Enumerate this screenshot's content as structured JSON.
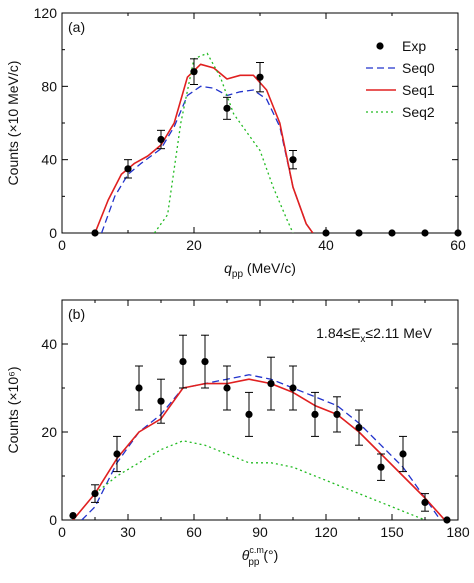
{
  "colors": {
    "exp": "#000000",
    "seq0": "#2233cc",
    "seq1": "#e02020",
    "seq2": "#22bb22",
    "axis": "#000000"
  },
  "chart_data": [
    {
      "type": "line",
      "panel_label": "(a)",
      "ylabel": "Counts (×10 MeV/c)",
      "xlabel_main": "q",
      "xlabel_sub": "pp",
      "xlabel_unit": " (MeV/c)",
      "xlim": [
        0,
        60
      ],
      "ylim": [
        0,
        120
      ],
      "xticks": [
        0,
        20,
        40,
        60
      ],
      "yticks": [
        0,
        40,
        80,
        120
      ],
      "xminor": [
        10,
        30,
        50
      ],
      "yminor": [
        20,
        60,
        100
      ],
      "legend_position": "top-right",
      "grid": false,
      "annotation": "",
      "points": {
        "name": "Exp",
        "x": [
          5,
          10,
          15,
          20,
          25,
          30,
          35,
          40,
          45,
          50,
          55,
          60
        ],
        "y": [
          0,
          35,
          51,
          88,
          68,
          85,
          40,
          0,
          0,
          0,
          0,
          0
        ],
        "err": [
          0,
          5,
          5,
          7,
          6,
          8,
          5,
          0,
          0,
          0,
          0,
          0
        ]
      },
      "series": [
        {
          "name": "Seq0",
          "style": "dashed",
          "color_key": "seq0",
          "x": [
            6,
            8,
            10,
            12,
            15,
            17,
            19,
            21,
            23,
            25,
            27,
            29,
            31,
            33,
            35,
            37,
            38
          ],
          "y": [
            0,
            20,
            32,
            38,
            46,
            58,
            75,
            80,
            79,
            75,
            77,
            78,
            73,
            58,
            25,
            5,
            0
          ]
        },
        {
          "name": "Seq1",
          "style": "solid",
          "color_key": "seq1",
          "x": [
            5,
            7,
            9,
            11,
            13,
            15,
            17,
            19,
            21,
            23,
            25,
            27,
            29,
            31,
            33,
            35,
            37,
            38
          ],
          "y": [
            0,
            18,
            32,
            38,
            42,
            48,
            60,
            85,
            92,
            90,
            84,
            86,
            86,
            78,
            60,
            25,
            5,
            0
          ]
        },
        {
          "name": "Seq2",
          "style": "dotted",
          "color_key": "seq2",
          "x": [
            14,
            16,
            18,
            20,
            22,
            24,
            26,
            28,
            30,
            32,
            34,
            35
          ],
          "y": [
            0,
            10,
            60,
            95,
            98,
            85,
            65,
            55,
            45,
            25,
            8,
            0
          ]
        }
      ]
    },
    {
      "type": "line",
      "panel_label": "(b)",
      "ylabel": "Counts (×10⁶)",
      "xlabel_main": "θ",
      "xlabel_sub": "pp",
      "xlabel_sup": "c.m.",
      "xlabel_unit": " (°)",
      "xlim": [
        0,
        180
      ],
      "ylim": [
        0,
        50
      ],
      "xticks": [
        0,
        30,
        60,
        90,
        120,
        150,
        180
      ],
      "yticks": [
        0,
        20,
        40
      ],
      "xminor": [
        15,
        45,
        75,
        105,
        135,
        165
      ],
      "yminor": [
        10,
        30
      ],
      "grid": false,
      "annotation": "1.84≤E",
      "annotation_sub": "x",
      "annotation_tail": "≤2.11 MeV",
      "points": {
        "name": "Exp",
        "x": [
          5,
          15,
          25,
          35,
          45,
          55,
          65,
          75,
          85,
          95,
          105,
          115,
          125,
          135,
          145,
          155,
          165,
          175
        ],
        "y": [
          1,
          6,
          15,
          30,
          27,
          36,
          36,
          30,
          24,
          31,
          30,
          24,
          24,
          21,
          12,
          15,
          4,
          0
        ],
        "err": [
          0,
          2,
          4,
          5,
          5,
          6,
          6,
          5,
          5,
          6,
          5,
          5,
          4,
          4,
          3,
          4,
          2,
          0
        ]
      },
      "series": [
        {
          "name": "Seq0",
          "style": "dashed",
          "color_key": "seq0",
          "x": [
            9,
            15,
            25,
            35,
            45,
            55,
            65,
            75,
            85,
            95,
            105,
            115,
            125,
            135,
            145,
            155,
            165,
            172
          ],
          "y": [
            0,
            3,
            13,
            20,
            24,
            30,
            31,
            32,
            33,
            32,
            30,
            28,
            26,
            22,
            17,
            12,
            5,
            0
          ]
        },
        {
          "name": "Seq1",
          "style": "solid",
          "color_key": "seq1",
          "x": [
            5,
            15,
            25,
            35,
            45,
            55,
            65,
            75,
            85,
            95,
            105,
            115,
            125,
            135,
            145,
            155,
            165,
            174
          ],
          "y": [
            0,
            6,
            14,
            20,
            23,
            30,
            31,
            31,
            32,
            31,
            29,
            26,
            24,
            20,
            15,
            10,
            5,
            0
          ]
        },
        {
          "name": "Seq2",
          "style": "dotted",
          "color_key": "seq2",
          "x": [
            15,
            25,
            35,
            45,
            55,
            65,
            75,
            85,
            95,
            105,
            115,
            125,
            135,
            145,
            155,
            165
          ],
          "y": [
            6,
            10,
            13,
            16,
            18,
            17,
            15,
            13,
            13,
            12,
            10,
            8,
            6,
            4,
            2,
            0
          ]
        }
      ]
    }
  ]
}
